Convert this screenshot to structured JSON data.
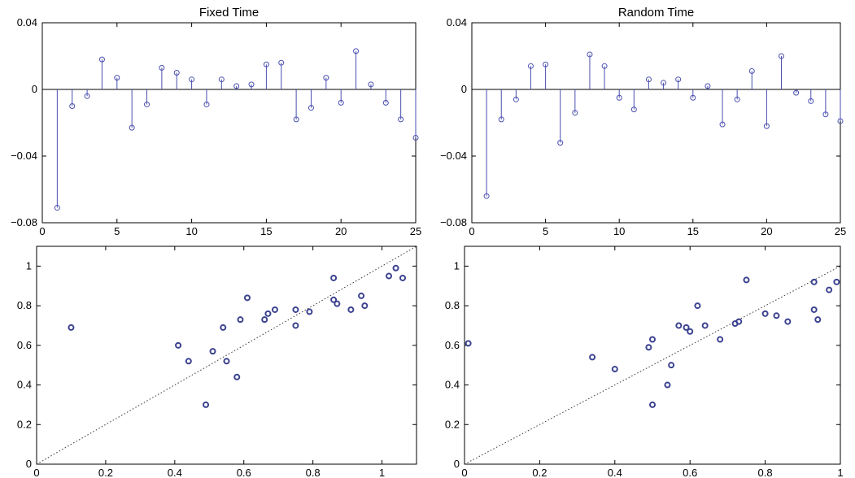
{
  "figure": {
    "colors": {
      "stem": "#4a4fb0",
      "scatter": "#3b428f",
      "axis": "#000000"
    }
  },
  "chart_data": [
    {
      "id": "fixed-stem",
      "type": "stem",
      "title": "Fixed Time",
      "xlim": [
        0,
        25
      ],
      "ylim": [
        -0.08,
        0.04
      ],
      "xticks": [
        0,
        5,
        10,
        15,
        20,
        25
      ],
      "xtick_labels": [
        "0",
        "5",
        "10",
        "15",
        "20",
        "25"
      ],
      "yticks": [
        0.04,
        0,
        -0.04,
        -0.08
      ],
      "ytick_labels": [
        "0.04",
        "0",
        "−0.04",
        "−0.08"
      ],
      "x": [
        1,
        2,
        3,
        4,
        5,
        6,
        7,
        8,
        9,
        10,
        11,
        12,
        13,
        14,
        15,
        16,
        17,
        18,
        19,
        20,
        21,
        22,
        23,
        24,
        25
      ],
      "y": [
        -0.071,
        -0.01,
        -0.004,
        0.018,
        0.007,
        -0.023,
        -0.009,
        0.013,
        0.01,
        0.006,
        -0.009,
        0.006,
        0.002,
        0.003,
        0.015,
        0.016,
        -0.018,
        -0.011,
        0.007,
        -0.008,
        0.023,
        0.003,
        -0.008,
        -0.018,
        -0.029
      ]
    },
    {
      "id": "random-stem",
      "type": "stem",
      "title": "Random Time",
      "xlim": [
        0,
        25
      ],
      "ylim": [
        -0.08,
        0.04
      ],
      "xticks": [
        0,
        5,
        10,
        15,
        20,
        25
      ],
      "xtick_labels": [
        "0",
        "5",
        "10",
        "15",
        "20",
        "25"
      ],
      "yticks": [
        0.04,
        0,
        -0.04,
        -0.08
      ],
      "ytick_labels": [
        "0.04",
        "0",
        "−0.04",
        "−0.08"
      ],
      "x": [
        1,
        2,
        3,
        4,
        5,
        6,
        7,
        8,
        9,
        10,
        11,
        12,
        13,
        14,
        15,
        16,
        17,
        18,
        19,
        20,
        21,
        22,
        23,
        24,
        25
      ],
      "y": [
        -0.064,
        -0.018,
        -0.006,
        0.014,
        0.015,
        -0.032,
        -0.014,
        0.021,
        0.014,
        -0.005,
        -0.012,
        0.006,
        0.004,
        0.006,
        -0.005,
        0.002,
        -0.021,
        -0.006,
        0.011,
        -0.022,
        0.02,
        -0.002,
        -0.007,
        -0.015,
        -0.019
      ]
    },
    {
      "id": "fixed-scatter",
      "type": "scatter",
      "xlim": [
        0,
        1.1
      ],
      "ylim": [
        0,
        1.1
      ],
      "xticks": [
        0,
        0.2,
        0.4,
        0.6,
        0.8,
        1
      ],
      "xtick_labels": [
        "0",
        "0.2",
        "0.4",
        "0.6",
        "0.8",
        "1"
      ],
      "yticks": [
        0,
        0.2,
        0.4,
        0.6,
        0.8,
        1
      ],
      "ytick_labels": [
        "0",
        "0.2",
        "0.4",
        "0.6",
        "0.8",
        "1"
      ],
      "diagonal": true,
      "x": [
        0.1,
        0.41,
        0.44,
        0.49,
        0.51,
        0.54,
        0.55,
        0.58,
        0.59,
        0.61,
        0.66,
        0.67,
        0.69,
        0.75,
        0.75,
        0.79,
        0.86,
        0.86,
        0.87,
        0.91,
        0.94,
        0.95,
        1.02,
        1.04,
        1.06
      ],
      "y": [
        0.69,
        0.6,
        0.52,
        0.3,
        0.57,
        0.69,
        0.52,
        0.44,
        0.73,
        0.84,
        0.73,
        0.76,
        0.78,
        0.7,
        0.78,
        0.77,
        0.83,
        0.94,
        0.81,
        0.78,
        0.85,
        0.8,
        0.95,
        0.99,
        0.94
      ]
    },
    {
      "id": "random-scatter",
      "type": "scatter",
      "xlim": [
        0,
        1
      ],
      "ylim": [
        0,
        1.1
      ],
      "xticks": [
        0,
        0.2,
        0.4,
        0.6,
        0.8,
        1
      ],
      "xtick_labels": [
        "0",
        "0.2",
        "0.4",
        "0.6",
        "0.8",
        "1"
      ],
      "yticks": [
        0,
        0.2,
        0.4,
        0.6,
        0.8,
        1
      ],
      "ytick_labels": [
        "0",
        "0.2",
        "0.4",
        "0.6",
        "0.8",
        "1"
      ],
      "diagonal": true,
      "x": [
        0.01,
        0.34,
        0.4,
        0.49,
        0.5,
        0.5,
        0.54,
        0.55,
        0.57,
        0.59,
        0.6,
        0.62,
        0.64,
        0.68,
        0.72,
        0.73,
        0.75,
        0.8,
        0.83,
        0.86,
        0.93,
        0.93,
        0.94,
        0.97,
        0.99
      ],
      "y": [
        0.61,
        0.54,
        0.48,
        0.59,
        0.3,
        0.63,
        0.4,
        0.5,
        0.7,
        0.69,
        0.67,
        0.8,
        0.7,
        0.63,
        0.71,
        0.72,
        0.93,
        0.76,
        0.75,
        0.72,
        0.92,
        0.78,
        0.73,
        0.88,
        0.92
      ]
    }
  ]
}
